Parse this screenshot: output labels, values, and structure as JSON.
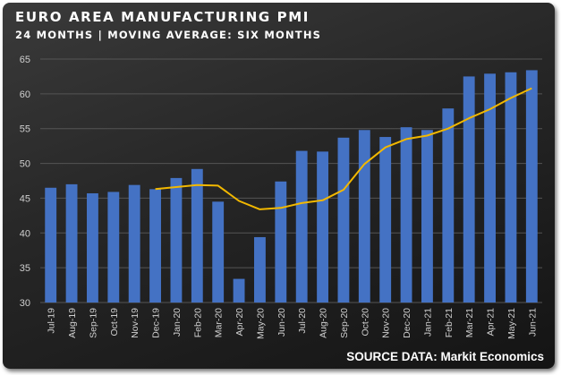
{
  "title": "EURO AREA MANUFACTURING PMI",
  "subtitle": "24 MONTHS | MOVING AVERAGE: SIX MONTHS",
  "source": "SOURCE DATA: Markit Economics",
  "colors": {
    "bar": "#4472c4",
    "average_line": "#f2b800",
    "grid": "#555555",
    "text": "#ffffff"
  },
  "chart_data": {
    "type": "bar",
    "title": "EURO AREA MANUFACTURING PMI",
    "subtitle": "24 MONTHS | MOVING AVERAGE: SIX MONTHS",
    "xlabel": "",
    "ylabel": "",
    "ylim": [
      30,
      65
    ],
    "yticks": [
      30,
      35,
      40,
      45,
      50,
      55,
      60,
      65
    ],
    "grid": true,
    "legend": "none",
    "categories": [
      "Jul-19",
      "Aug-19",
      "Sep-19",
      "Oct-19",
      "Nov-19",
      "Dec-19",
      "Jan-20",
      "Feb-20",
      "Mar-20",
      "Apr-20",
      "May-20",
      "Jun-20",
      "Jul-20",
      "Aug-20",
      "Sep-20",
      "Oct-20",
      "Nov-20",
      "Dec-20",
      "Jan-21",
      "Feb-21",
      "Mar-21",
      "Apr-21",
      "May-21",
      "Jun-21"
    ],
    "series": [
      {
        "type": "bar",
        "values": [
          46.5,
          47.0,
          45.7,
          45.9,
          46.9,
          46.3,
          47.9,
          49.2,
          44.5,
          33.4,
          39.4,
          47.4,
          51.8,
          51.7,
          53.7,
          54.8,
          53.8,
          55.2,
          54.8,
          57.9,
          62.5,
          62.9,
          63.1,
          63.4
        ]
      },
      {
        "type": "line",
        "values": [
          null,
          null,
          null,
          null,
          null,
          46.3,
          46.6,
          46.9,
          46.8,
          44.6,
          43.4,
          43.6,
          44.3,
          44.7,
          46.2,
          49.9,
          52.3,
          53.5,
          54.0,
          55.0,
          56.5,
          57.8,
          59.4,
          60.8
        ]
      }
    ]
  }
}
